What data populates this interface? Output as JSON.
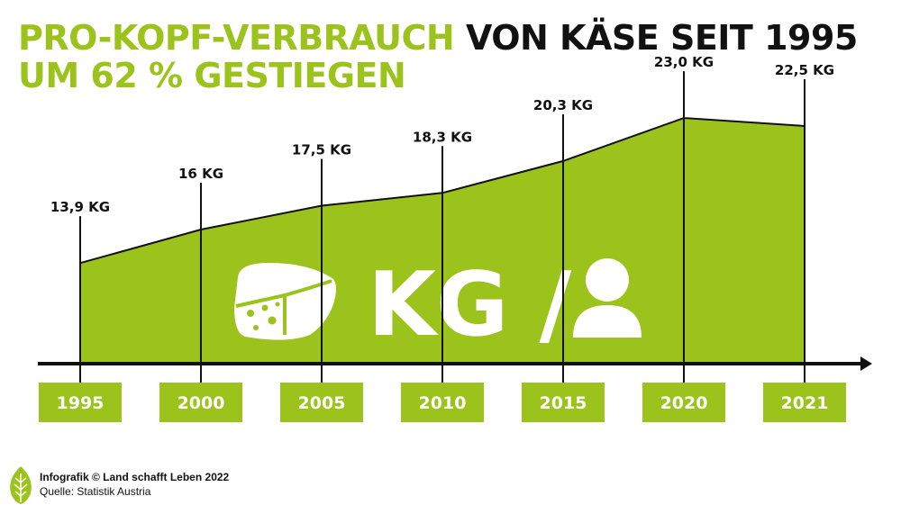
{
  "header": {
    "title_green": "PRO-KOPF-VERBRAUCH",
    "title_black": "VON KÄSE SEIT 1995",
    "title_line2": "UM 62 % GESTIEGEN"
  },
  "footer": {
    "credit": "Infografik © Land schafft Leben 2022",
    "source": "Quelle: Statistik Austria"
  },
  "overlay": {
    "unit_text": "KG /",
    "cheese_icon": "cheese-icon",
    "person_icon": "person-icon"
  },
  "colors": {
    "accent": "#9bc31c",
    "axis": "#111111",
    "label_text": "#ffffff"
  },
  "chart_data": {
    "type": "area",
    "x": [
      "1995",
      "2000",
      "2005",
      "2010",
      "2015",
      "2020",
      "2021"
    ],
    "values": [
      13.9,
      16,
      17.5,
      18.3,
      20.3,
      23.0,
      22.5
    ],
    "value_labels": [
      "13,9 KG",
      "16 KG",
      "17,5 KG",
      "18,3 KG",
      "20,3 KG",
      "23,0 KG",
      "22,5 KG"
    ],
    "unit": "KG",
    "grid": false,
    "legend": "none"
  }
}
